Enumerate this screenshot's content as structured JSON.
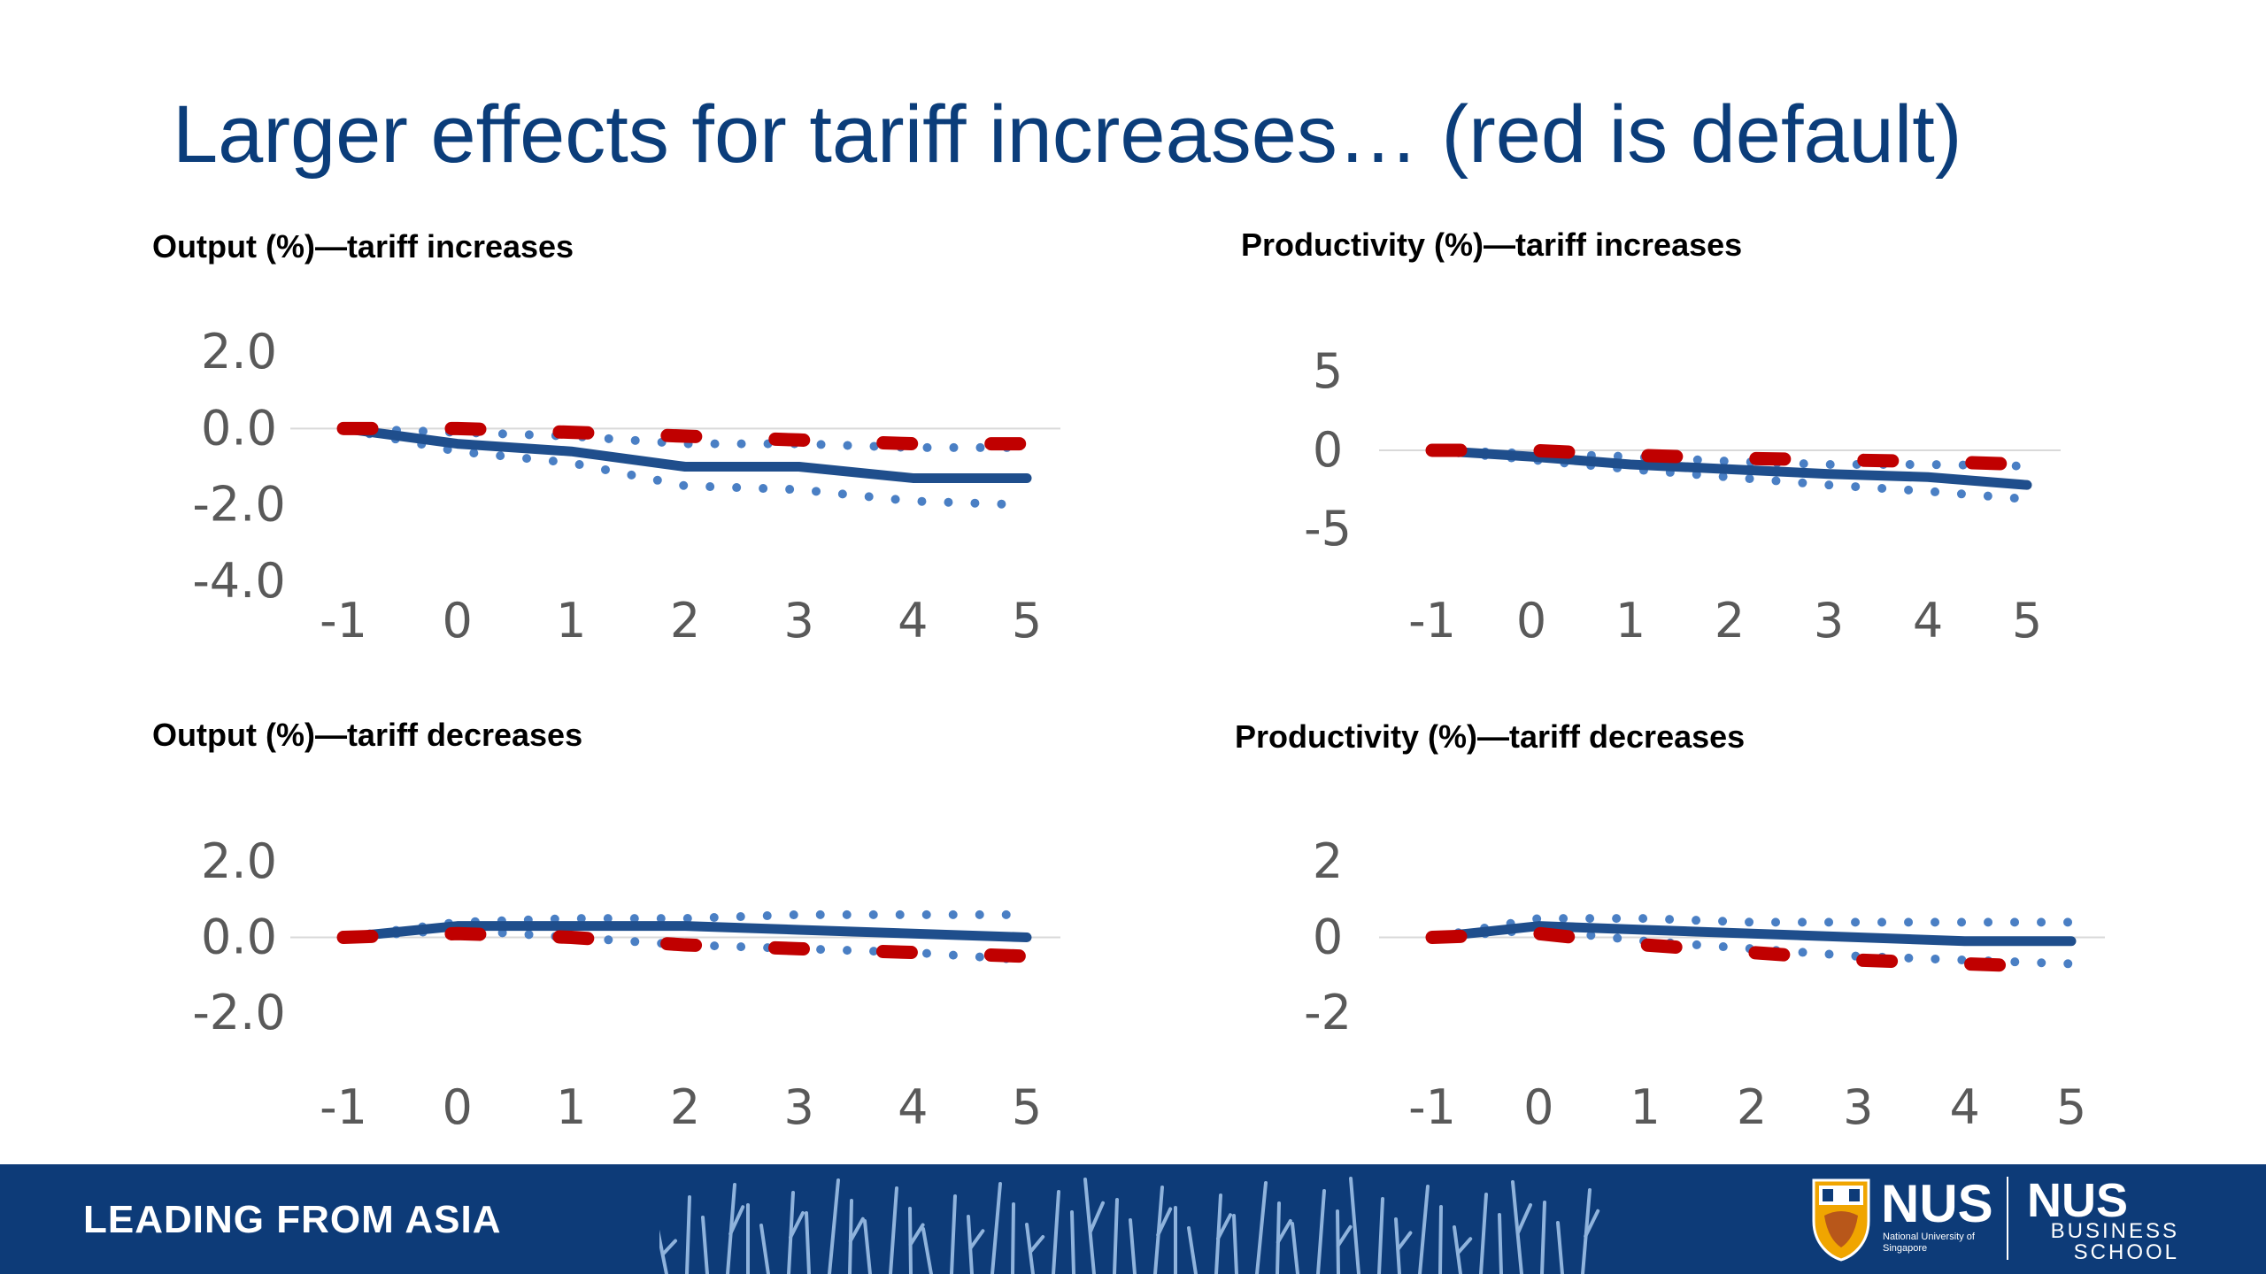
{
  "slide": {
    "title": "Larger effects for tariff increases… (red is default)"
  },
  "colors": {
    "default_series": "#c00000",
    "estimate": "#1f4e8c",
    "confidence_band": "#4a7fc4",
    "footer_bg": "#0d3b78",
    "title": "#0b3d7a"
  },
  "footer": {
    "tagline": "LEADING FROM ASIA",
    "logo_main": "NUS",
    "logo_sub": "National University of Singapore",
    "logo_school_main": "NUS",
    "logo_school_sub": "BUSINESS SCHOOL"
  },
  "chart_data": [
    {
      "id": "output-increases",
      "type": "line",
      "title": "Output (%)—tariff increases",
      "x": [
        -1,
        0,
        1,
        2,
        3,
        4,
        5
      ],
      "ylim": [
        -4.0,
        2.0
      ],
      "yticks": [
        "2.0",
        "0.0",
        "-2.0",
        "-4.0"
      ],
      "ytick_values": [
        2,
        0,
        -2,
        -4
      ],
      "grid": "zero-line only",
      "legend": "none",
      "series": [
        {
          "role": "estimate",
          "style": "solid",
          "color": "#1f4e8c",
          "values": [
            0.0,
            -0.4,
            -0.6,
            -1.0,
            -1.0,
            -1.3,
            -1.3
          ]
        },
        {
          "role": "upper",
          "style": "dotted",
          "color": "#4a7fc4",
          "values": [
            0.0,
            -0.1,
            -0.2,
            -0.4,
            -0.4,
            -0.5,
            -0.5
          ]
        },
        {
          "role": "lower",
          "style": "dotted",
          "color": "#4a7fc4",
          "values": [
            0.0,
            -0.6,
            -0.9,
            -1.5,
            -1.6,
            -1.9,
            -2.0
          ]
        },
        {
          "role": "default",
          "style": "dashed",
          "color": "#c00000",
          "values": [
            0.0,
            0.0,
            -0.1,
            -0.2,
            -0.3,
            -0.4,
            -0.4
          ]
        }
      ]
    },
    {
      "id": "productivity-increases",
      "type": "line",
      "title": "Productivity (%)—tariff increases",
      "x": [
        -1,
        0,
        1,
        2,
        3,
        4,
        5
      ],
      "ylim": [
        -5,
        5
      ],
      "yticks": [
        "5",
        "0",
        "-5"
      ],
      "ytick_values": [
        5,
        0,
        -5
      ],
      "grid": "zero-line only",
      "legend": "none",
      "series": [
        {
          "role": "estimate",
          "style": "solid",
          "color": "#1f4e8c",
          "values": [
            0.0,
            -0.4,
            -0.9,
            -1.2,
            -1.5,
            -1.7,
            -2.2
          ]
        },
        {
          "role": "upper",
          "style": "dotted",
          "color": "#4a7fc4",
          "values": [
            0.0,
            -0.2,
            -0.4,
            -0.7,
            -0.9,
            -0.9,
            -1.0
          ]
        },
        {
          "role": "lower",
          "style": "dotted",
          "color": "#4a7fc4",
          "values": [
            0.0,
            -0.6,
            -1.2,
            -1.7,
            -2.2,
            -2.6,
            -3.1
          ]
        },
        {
          "role": "default",
          "style": "dashed",
          "color": "#c00000",
          "values": [
            0.0,
            0.0,
            -0.3,
            -0.5,
            -0.6,
            -0.7,
            -0.9
          ]
        }
      ]
    },
    {
      "id": "output-decreases",
      "type": "line",
      "title": "Output (%)—tariff decreases",
      "x": [
        -1,
        0,
        1,
        2,
        3,
        4,
        5
      ],
      "ylim": [
        -2.0,
        2.0
      ],
      "yticks": [
        "2.0",
        "0.0",
        "-2.0"
      ],
      "ytick_values": [
        2,
        0,
        -2
      ],
      "grid": "zero-line only",
      "legend": "none",
      "series": [
        {
          "role": "estimate",
          "style": "solid",
          "color": "#1f4e8c",
          "values": [
            0.0,
            0.3,
            0.3,
            0.3,
            0.2,
            0.1,
            0.0
          ]
        },
        {
          "role": "upper",
          "style": "dotted",
          "color": "#4a7fc4",
          "values": [
            0.0,
            0.4,
            0.5,
            0.5,
            0.6,
            0.6,
            0.6
          ]
        },
        {
          "role": "lower",
          "style": "dotted",
          "color": "#4a7fc4",
          "values": [
            0.0,
            0.2,
            0.0,
            -0.2,
            -0.3,
            -0.4,
            -0.6
          ]
        },
        {
          "role": "default",
          "style": "dashed",
          "color": "#c00000",
          "values": [
            0.0,
            0.1,
            0.0,
            -0.2,
            -0.3,
            -0.4,
            -0.5
          ]
        }
      ]
    },
    {
      "id": "productivity-decreases",
      "type": "line",
      "title": "Productivity (%)—tariff decreases",
      "x": [
        -1,
        0,
        1,
        2,
        3,
        4,
        5
      ],
      "ylim": [
        -2,
        2
      ],
      "yticks": [
        "2",
        "0",
        "-2"
      ],
      "ytick_values": [
        2,
        0,
        -2
      ],
      "grid": "zero-line only",
      "legend": "none",
      "series": [
        {
          "role": "estimate",
          "style": "solid",
          "color": "#1f4e8c",
          "values": [
            0.0,
            0.3,
            0.2,
            0.1,
            0.0,
            -0.1,
            -0.1
          ]
        },
        {
          "role": "upper",
          "style": "dotted",
          "color": "#4a7fc4",
          "values": [
            0.0,
            0.5,
            0.5,
            0.4,
            0.4,
            0.4,
            0.4
          ]
        },
        {
          "role": "lower",
          "style": "dotted",
          "color": "#4a7fc4",
          "values": [
            0.0,
            0.2,
            -0.1,
            -0.3,
            -0.5,
            -0.6,
            -0.7
          ]
        },
        {
          "role": "default",
          "style": "dashed",
          "color": "#c00000",
          "values": [
            0.0,
            0.1,
            -0.2,
            -0.4,
            -0.6,
            -0.7,
            -0.8
          ]
        }
      ]
    }
  ]
}
